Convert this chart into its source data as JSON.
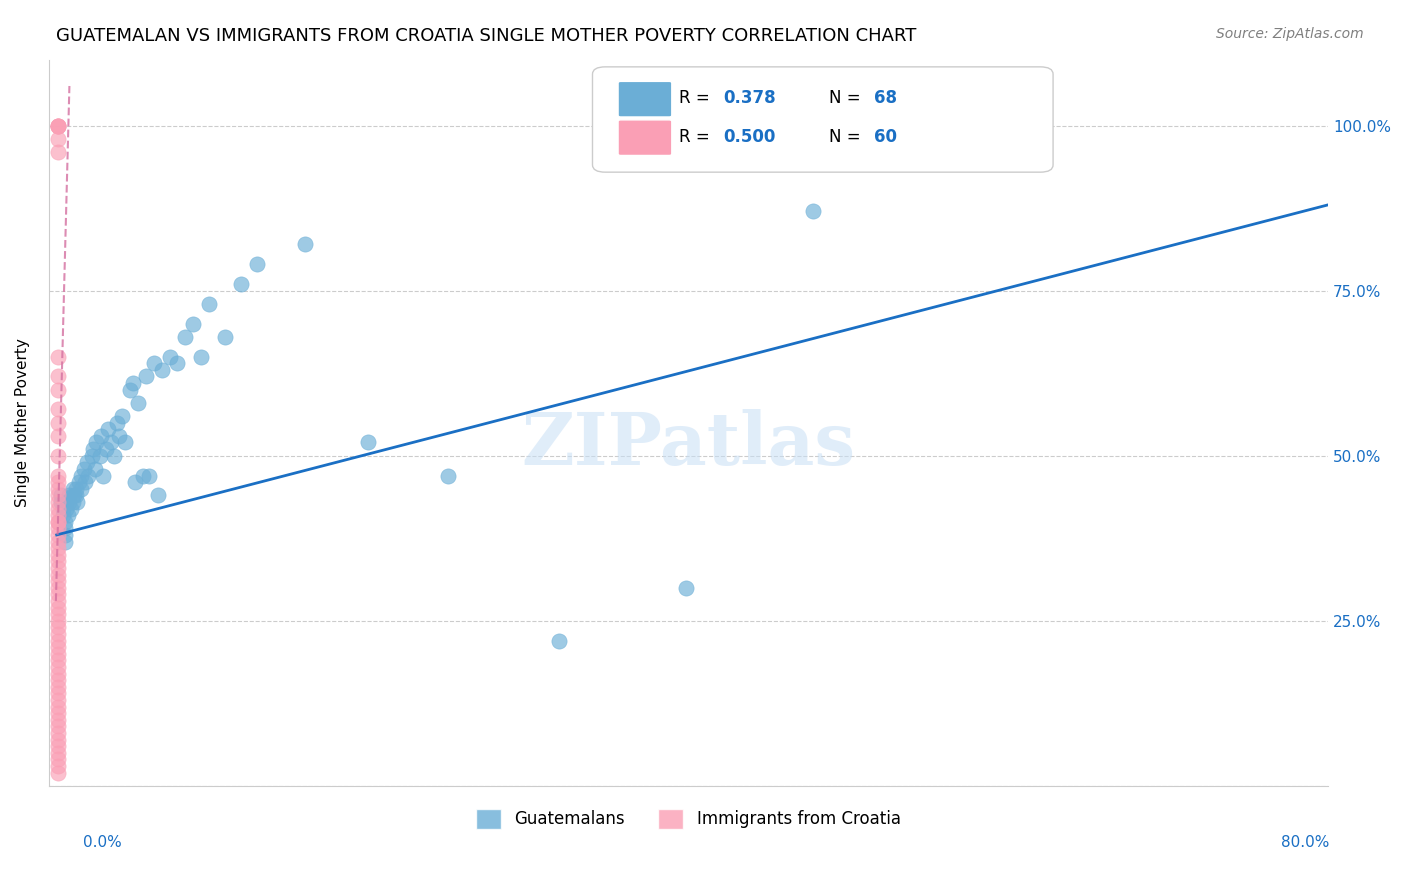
{
  "title": "GUATEMALAN VS IMMIGRANTS FROM CROATIA SINGLE MOTHER POVERTY CORRELATION CHART",
  "source": "Source: ZipAtlas.com",
  "ylabel": "Single Mother Poverty",
  "legend_blue_R": "0.378",
  "legend_blue_N": "68",
  "legend_pink_R": "0.500",
  "legend_pink_N": "60",
  "blue_color": "#6baed6",
  "pink_color": "#fa9fb5",
  "trendline_blue": "#1a6fc4",
  "trendline_pink": "#d46fa0",
  "watermark": "ZIPatlas",
  "blue_x": [
    0.003,
    0.003,
    0.004,
    0.004,
    0.004,
    0.005,
    0.005,
    0.005,
    0.005,
    0.006,
    0.006,
    0.007,
    0.008,
    0.008,
    0.009,
    0.01,
    0.01,
    0.011,
    0.012,
    0.012,
    0.013,
    0.014,
    0.015,
    0.015,
    0.017,
    0.018,
    0.019,
    0.02,
    0.022,
    0.023,
    0.024,
    0.025,
    0.027,
    0.028,
    0.029,
    0.031,
    0.032,
    0.034,
    0.036,
    0.038,
    0.039,
    0.041,
    0.043,
    0.046,
    0.048,
    0.049,
    0.051,
    0.054,
    0.056,
    0.058,
    0.061,
    0.064,
    0.066,
    0.071,
    0.076,
    0.081,
    0.086,
    0.091,
    0.096,
    0.106,
    0.116,
    0.126,
    0.156,
    0.196,
    0.246,
    0.316,
    0.396,
    0.476
  ],
  "blue_y": [
    0.44,
    0.43,
    0.43,
    0.42,
    0.41,
    0.4,
    0.39,
    0.38,
    0.37,
    0.43,
    0.42,
    0.41,
    0.44,
    0.43,
    0.42,
    0.45,
    0.43,
    0.44,
    0.45,
    0.44,
    0.43,
    0.46,
    0.47,
    0.45,
    0.48,
    0.46,
    0.49,
    0.47,
    0.5,
    0.51,
    0.48,
    0.52,
    0.5,
    0.53,
    0.47,
    0.51,
    0.54,
    0.52,
    0.5,
    0.55,
    0.53,
    0.56,
    0.52,
    0.6,
    0.61,
    0.46,
    0.58,
    0.47,
    0.62,
    0.47,
    0.64,
    0.44,
    0.63,
    0.65,
    0.64,
    0.68,
    0.7,
    0.65,
    0.73,
    0.68,
    0.76,
    0.79,
    0.82,
    0.52,
    0.47,
    0.22,
    0.3,
    0.87
  ],
  "pink_x": [
    0.001,
    0.001,
    0.001,
    0.001,
    0.001,
    0.001,
    0.001,
    0.001,
    0.001,
    0.001,
    0.001,
    0.001,
    0.001,
    0.001,
    0.001,
    0.001,
    0.001,
    0.001,
    0.001,
    0.001,
    0.001,
    0.001,
    0.001,
    0.001,
    0.001,
    0.001,
    0.001,
    0.001,
    0.001,
    0.001,
    0.001,
    0.001,
    0.001,
    0.001,
    0.001,
    0.001,
    0.001,
    0.001,
    0.001,
    0.001,
    0.001,
    0.001,
    0.001,
    0.001,
    0.001,
    0.001,
    0.001,
    0.001,
    0.001,
    0.001,
    0.001,
    0.001,
    0.001,
    0.001,
    0.001,
    0.001,
    0.001,
    0.001,
    0.001,
    0.001
  ],
  "pink_y": [
    1.0,
    1.0,
    1.0,
    1.0,
    0.98,
    0.96,
    0.65,
    0.62,
    0.6,
    0.57,
    0.55,
    0.53,
    0.5,
    0.47,
    0.46,
    0.45,
    0.44,
    0.43,
    0.42,
    0.41,
    0.4,
    0.4,
    0.39,
    0.38,
    0.37,
    0.36,
    0.35,
    0.34,
    0.33,
    0.32,
    0.31,
    0.3,
    0.29,
    0.28,
    0.27,
    0.26,
    0.25,
    0.24,
    0.23,
    0.22,
    0.21,
    0.2,
    0.19,
    0.18,
    0.17,
    0.16,
    0.15,
    0.14,
    0.13,
    0.12,
    0.11,
    0.1,
    0.09,
    0.08,
    0.07,
    0.06,
    0.05,
    0.04,
    0.03,
    0.02
  ],
  "blue_trend_x": [
    0.0,
    0.8
  ],
  "blue_trend_y": [
    0.38,
    0.88
  ],
  "pink_trend_x": [
    -0.0005,
    0.008
  ],
  "pink_trend_y": [
    0.28,
    1.06
  ],
  "xlim": [
    -0.005,
    0.8
  ],
  "ylim": [
    0.0,
    1.1
  ],
  "xticks": [
    0.0,
    0.1,
    0.2,
    0.3,
    0.4,
    0.5,
    0.6,
    0.7,
    0.8
  ],
  "yticks": [
    0.0,
    0.25,
    0.5,
    0.75,
    1.0
  ],
  "right_ytick_labels": [
    "25.0%",
    "50.0%",
    "75.0%",
    "100.0%"
  ],
  "axis_color": "#1a6fc4",
  "grid_color": "#cccccc",
  "title_fontsize": 13,
  "source_fontsize": 10,
  "tick_fontsize": 11,
  "ylabel_fontsize": 11,
  "watermark_fontsize": 52,
  "legend_fontsize": 12,
  "scatter_size": 120,
  "scatter_alpha": 0.65
}
